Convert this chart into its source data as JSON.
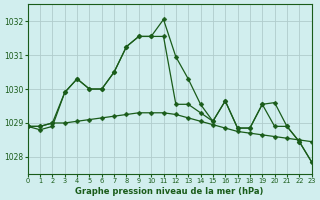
{
  "title": "Graphe pression niveau de la mer (hPa)",
  "background_color": "#d1eeee",
  "grid_color": "#b0cccc",
  "line_color": "#1a5c1a",
  "xlim": [
    0,
    23
  ],
  "ylim": [
    1027.5,
    1032.5
  ],
  "yticks": [
    1028,
    1029,
    1030,
    1031,
    1032
  ],
  "xticks": [
    0,
    1,
    2,
    3,
    4,
    5,
    6,
    7,
    8,
    9,
    10,
    11,
    12,
    13,
    14,
    15,
    16,
    17,
    18,
    19,
    20,
    21,
    22,
    23
  ],
  "line1_y": [
    1028.9,
    1028.8,
    1028.9,
    1029.9,
    1030.3,
    1030.0,
    1030.0,
    1030.5,
    1031.25,
    1031.55,
    1031.55,
    1032.05,
    1030.95,
    1030.3,
    1029.55,
    1029.05,
    1029.65,
    1028.85,
    1028.85,
    1029.55,
    1028.9,
    1028.9,
    1028.45,
    1027.85
  ],
  "line2_y": [
    1028.9,
    1028.9,
    1029.0,
    1029.0,
    1029.05,
    1029.1,
    1029.15,
    1029.2,
    1029.25,
    1029.3,
    1029.3,
    1029.3,
    1029.25,
    1029.15,
    1029.05,
    1028.95,
    1028.85,
    1028.75,
    1028.7,
    1028.65,
    1028.6,
    1028.55,
    1028.5,
    1028.45
  ],
  "line3_y": [
    1028.9,
    1028.9,
    1029.0,
    1029.9,
    1030.3,
    1030.0,
    1030.0,
    1030.5,
    1031.25,
    1031.55,
    1031.55,
    1031.55,
    1029.55,
    1029.55,
    1029.3,
    1029.05,
    1029.65,
    1028.85,
    1028.85,
    1029.55,
    1029.6,
    1028.9,
    1028.45,
    1027.85
  ]
}
